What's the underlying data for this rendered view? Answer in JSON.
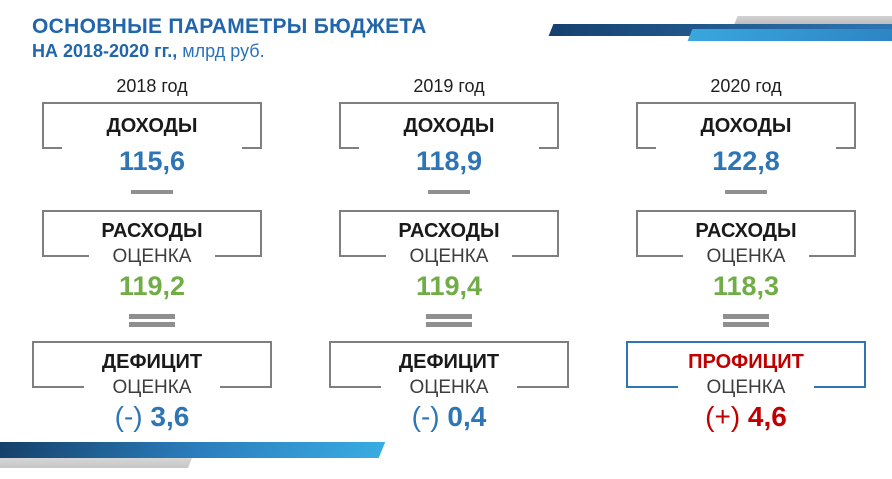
{
  "slide": {
    "title_line1": "ОСНОВНЫЕ ПАРАМЕТРЫ БЮДЖЕТА",
    "title_line2_bold": "НА 2018-2020 гг.,",
    "title_line2_rest": " млрд руб."
  },
  "colors": {
    "title_blue": "#2166AC",
    "value_blue": "#2E75B6",
    "expense_green": "#70AD47",
    "deficit_red": "#C00000",
    "box_border_gray": "#7F7F7F",
    "profit_border_blue": "#2E75B6"
  },
  "columns": [
    {
      "year": "2018 год",
      "income": {
        "label": "ДОХОДЫ",
        "value": "115,6"
      },
      "expense": {
        "label": "РАСХОДЫ",
        "sublabel": "ОЦЕНКА",
        "value": "119,2"
      },
      "balance": {
        "label": "ДЕФИЦИТ",
        "sublabel": "ОЦЕНКА",
        "sign": "(-)",
        "value": "3,6",
        "type": "deficit"
      }
    },
    {
      "year": "2019 год",
      "income": {
        "label": "ДОХОДЫ",
        "value": "118,9"
      },
      "expense": {
        "label": "РАСХОДЫ",
        "sublabel": "ОЦЕНКА",
        "value": "119,4"
      },
      "balance": {
        "label": "ДЕФИЦИТ",
        "sublabel": "ОЦЕНКА",
        "sign": "(-)",
        "value": "0,4",
        "type": "deficit"
      }
    },
    {
      "year": "2020 год",
      "income": {
        "label": "ДОХОДЫ",
        "value": "122,8"
      },
      "expense": {
        "label": "РАСХОДЫ",
        "sublabel": "ОЦЕНКА",
        "value": "118,3"
      },
      "balance": {
        "label": "ПРОФИЦИТ",
        "sublabel": "ОЦЕНКА",
        "sign": "(+)",
        "value": "4,6",
        "type": "profit"
      }
    }
  ]
}
